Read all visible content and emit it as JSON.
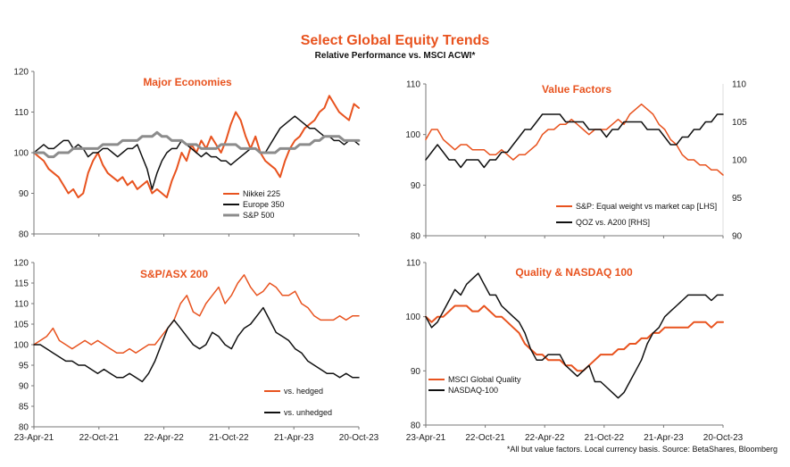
{
  "title": "Select Global Equity Trends",
  "subtitle": "Relative Performance vs. MSCI ACWI*",
  "footnote": "*All but value factors. Local currency basis.  Source: BetaShares, Bloomberg",
  "colors": {
    "orange": "#e8531f",
    "black": "#111111",
    "grey": "#8c8c8c"
  },
  "x_tick_labels": [
    "23-Apr-21",
    "22-Oct-21",
    "22-Apr-22",
    "21-Oct-22",
    "21-Apr-23",
    "20-Oct-23"
  ],
  "chart_data": [
    {
      "type": "line",
      "title": "Major Economies",
      "ylim": [
        80,
        120
      ],
      "yticks": [
        "80",
        "90",
        "100",
        "110",
        "120"
      ],
      "legend_position": "bottom-center",
      "series": [
        {
          "name": "Nikkei 225",
          "color": "#e8531f",
          "width": 2,
          "values": [
            100,
            99,
            98,
            96,
            95,
            94,
            92,
            90,
            91,
            89,
            90,
            95,
            98,
            100,
            97,
            95,
            94,
            93,
            94,
            92,
            93,
            91,
            92,
            93,
            90,
            91,
            90,
            89,
            93,
            96,
            100,
            98,
            102,
            100,
            103,
            101,
            104,
            102,
            100,
            103,
            107,
            110,
            108,
            104,
            101,
            104,
            100,
            98,
            97,
            96,
            94,
            98,
            101,
            103,
            104,
            106,
            107,
            108,
            110,
            111,
            114,
            112,
            110,
            109,
            108,
            112,
            111
          ]
        },
        {
          "name": "Europe 350",
          "color": "#111111",
          "width": 1.5,
          "values": [
            100,
            101,
            102,
            101,
            101,
            102,
            103,
            103,
            101,
            102,
            101,
            99,
            100,
            100,
            101,
            101,
            100,
            99,
            100,
            101,
            101,
            102,
            99,
            96,
            91,
            95,
            98,
            100,
            101,
            101,
            103,
            102,
            101,
            100,
            99,
            100,
            99,
            99,
            98,
            98,
            97,
            98,
            99,
            100,
            101,
            101,
            100,
            100,
            102,
            104,
            106,
            107,
            108,
            109,
            108,
            107,
            106,
            106,
            105,
            104,
            104,
            103,
            103,
            102,
            103,
            103,
            102
          ]
        },
        {
          "name": "S&P 500",
          "color": "#8c8c8c",
          "width": 3,
          "values": [
            100,
            100,
            100,
            99,
            99,
            100,
            100,
            100,
            101,
            101,
            101,
            101,
            101,
            101,
            102,
            102,
            102,
            102,
            103,
            103,
            103,
            103,
            104,
            104,
            104,
            105,
            104,
            104,
            103,
            103,
            103,
            102,
            102,
            102,
            101,
            101,
            101,
            101,
            102,
            102,
            102,
            102,
            101,
            101,
            101,
            101,
            100,
            100,
            100,
            100,
            101,
            101,
            101,
            101,
            102,
            102,
            102,
            103,
            103,
            104,
            104,
            104,
            104,
            103,
            103,
            103,
            103
          ]
        }
      ]
    },
    {
      "type": "line",
      "title": "Value Factors",
      "ylim": [
        80,
        110
      ],
      "yticks": [
        "80",
        "90",
        "100",
        "110"
      ],
      "y2lim": [
        90,
        110
      ],
      "y2ticks": [
        "90",
        "95",
        "100",
        "105",
        "110"
      ],
      "legend_position": "bottom-right",
      "series": [
        {
          "name": "S&P: Equal weight vs market cap [LHS]",
          "color": "#e8531f",
          "width": 1.5,
          "axis": "left",
          "values": [
            99,
            101,
            101,
            99,
            98,
            97,
            98,
            98,
            97,
            97,
            97,
            96,
            96,
            97,
            96,
            95,
            96,
            96,
            97,
            98,
            100,
            101,
            101,
            102,
            102,
            103,
            102,
            101,
            100,
            101,
            101,
            101,
            102,
            103,
            102,
            104,
            105,
            106,
            105,
            104,
            102,
            101,
            99,
            98,
            96,
            95,
            95,
            94,
            94,
            93,
            93,
            92
          ]
        },
        {
          "name": "QOZ vs. A200 [RHS]",
          "color": "#111111",
          "width": 1.5,
          "axis": "right",
          "values": [
            100,
            101,
            102,
            101,
            100,
            100,
            99,
            100,
            100,
            100,
            99,
            100,
            100,
            101,
            101,
            102,
            103,
            104,
            104,
            105,
            106,
            106,
            106,
            106,
            105,
            105,
            105,
            105,
            104,
            104,
            104,
            103,
            104,
            104,
            105,
            105,
            105,
            105,
            104,
            104,
            104,
            103,
            102,
            102,
            103,
            103,
            104,
            104,
            105,
            105,
            106,
            106
          ]
        }
      ]
    },
    {
      "type": "line",
      "title": "S&P/ASX 200",
      "ylim": [
        80,
        120
      ],
      "yticks": [
        "80",
        "85",
        "90",
        "95",
        "100",
        "105",
        "110",
        "115",
        "120"
      ],
      "legend_position": "bottom-right",
      "series": [
        {
          "name": "vs. hedged",
          "color": "#e8531f",
          "width": 1.5,
          "values": [
            100,
            101,
            102,
            104,
            101,
            100,
            99,
            100,
            101,
            100,
            101,
            100,
            99,
            98,
            98,
            99,
            98,
            99,
            100,
            100,
            102,
            104,
            106,
            110,
            112,
            108,
            107,
            110,
            112,
            114,
            110,
            112,
            115,
            117,
            114,
            112,
            113,
            115,
            114,
            112,
            112,
            113,
            110,
            109,
            107,
            106,
            106,
            106,
            107,
            106,
            107,
            107
          ]
        },
        {
          "name": "vs. unhedged",
          "color": "#111111",
          "width": 1.5,
          "values": [
            100,
            100,
            99,
            98,
            97,
            96,
            96,
            95,
            95,
            94,
            93,
            94,
            93,
            92,
            92,
            93,
            92,
            91,
            93,
            96,
            100,
            104,
            106,
            104,
            102,
            100,
            99,
            100,
            103,
            102,
            100,
            99,
            102,
            104,
            105,
            107,
            109,
            106,
            103,
            102,
            101,
            99,
            98,
            96,
            95,
            94,
            93,
            93,
            92,
            93,
            92,
            92
          ]
        }
      ]
    },
    {
      "type": "line",
      "title": "Quality & NASDAQ 100",
      "ylim": [
        80,
        110
      ],
      "yticks": [
        "80",
        "90",
        "100",
        "110"
      ],
      "legend_position": "bottom-left",
      "series": [
        {
          "name": "MSCI Global Quality",
          "color": "#e8531f",
          "width": 2,
          "values": [
            100,
            99,
            100,
            100,
            101,
            102,
            102,
            102,
            101,
            101,
            102,
            101,
            100,
            100,
            99,
            98,
            97,
            95,
            94,
            93,
            93,
            92,
            92,
            92,
            91,
            91,
            90,
            90,
            91,
            92,
            93,
            93,
            93,
            94,
            94,
            95,
            95,
            96,
            96,
            97,
            97,
            98,
            98,
            98,
            98,
            98,
            99,
            99,
            99,
            98,
            99,
            99
          ]
        },
        {
          "name": "NASDAQ-100",
          "color": "#111111",
          "width": 1.5,
          "values": [
            100,
            98,
            99,
            101,
            103,
            105,
            104,
            106,
            107,
            108,
            106,
            104,
            104,
            102,
            101,
            100,
            99,
            97,
            94,
            92,
            92,
            93,
            93,
            93,
            91,
            90,
            89,
            90,
            91,
            88,
            88,
            87,
            86,
            85,
            86,
            88,
            90,
            92,
            95,
            97,
            98,
            100,
            101,
            102,
            103,
            104,
            104,
            104,
            104,
            103,
            104,
            104
          ]
        }
      ]
    }
  ]
}
